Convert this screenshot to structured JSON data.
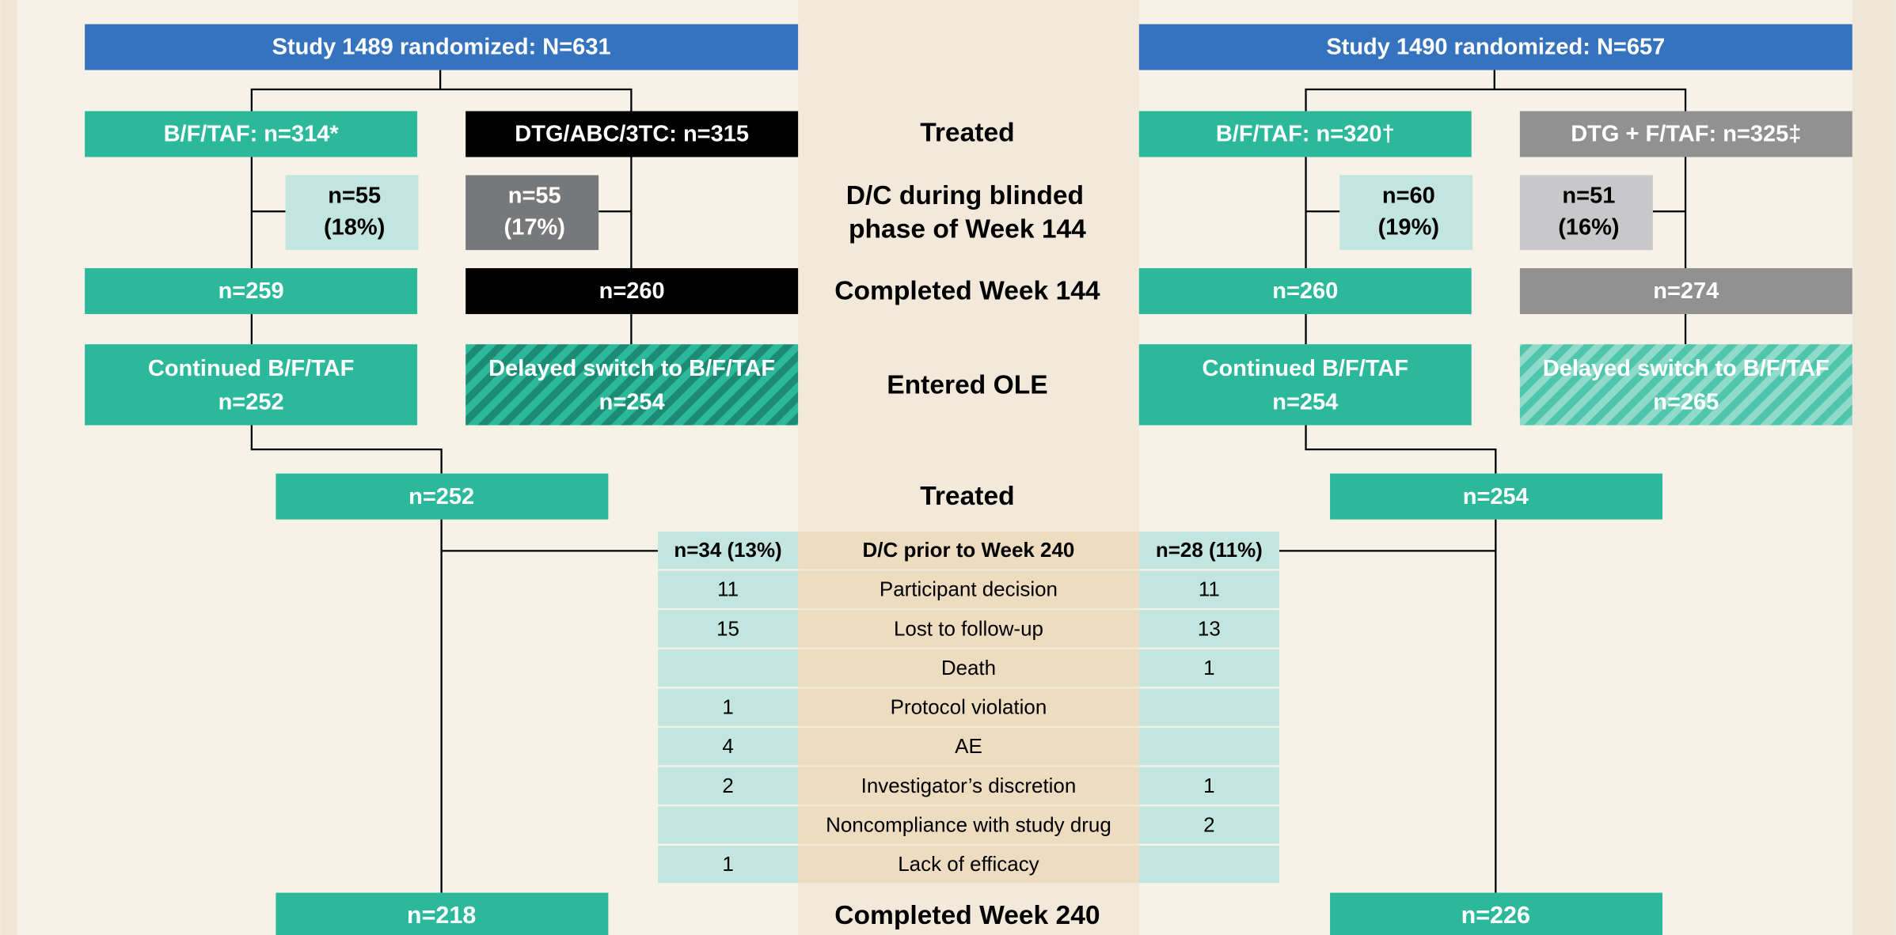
{
  "left": {
    "title": "Study 1489 randomized: N=631",
    "arms": [
      {
        "treated": "B/F/TAF: n=314*",
        "dc": [
          "n=55",
          "(18%)"
        ],
        "completed": "n=259",
        "ole": [
          "Continued B/F/TAF",
          "n=252"
        ]
      },
      {
        "treated": "DTG/ABC/3TC: n=315",
        "dc": [
          "n=55",
          "(17%)"
        ],
        "completed": "n=260",
        "ole": [
          "Delayed switch to B/F/TAF",
          "n=254"
        ]
      }
    ],
    "ole_treated": "n=252",
    "completed": "n=218"
  },
  "right": {
    "title": "Study 1490 randomized: N=657",
    "arms": [
      {
        "treated": "B/F/TAF: n=320†",
        "dc": [
          "n=60",
          "(19%)"
        ],
        "completed": "n=260",
        "ole": [
          "Continued B/F/TAF",
          "n=254"
        ]
      },
      {
        "treated": "DTG + F/TAF: n=325‡",
        "dc": [
          "n=51",
          "(16%)"
        ],
        "completed": "n=274",
        "ole": [
          "Delayed switch to B/F/TAF",
          "n=265"
        ]
      }
    ],
    "ole_treated": "n=254",
    "completed": "n=226"
  },
  "stages": {
    "treated": "Treated",
    "dc_blinded": [
      "D/C during blinded",
      "phase of Week 144"
    ],
    "completed_144": "Completed Week 144",
    "ole": "Entered OLE",
    "treated_ole": "Treated",
    "completed_240": "Completed Week 240"
  },
  "table": {
    "header": [
      "n=34 (13%)",
      "D/C prior to Week 240",
      "n=28 (11%)"
    ],
    "rows": [
      [
        11,
        "Participant decision",
        11
      ],
      [
        15,
        "Lost to follow-up",
        13
      ],
      [
        null,
        "Death",
        1
      ],
      [
        1,
        "Protocol violation",
        null
      ],
      [
        4,
        "AE",
        null
      ],
      [
        2,
        "Investigator’s discretion",
        1
      ],
      [
        null,
        "Noncompliance with study drug",
        2
      ],
      [
        1,
        "Lack of efficacy",
        null
      ]
    ]
  }
}
